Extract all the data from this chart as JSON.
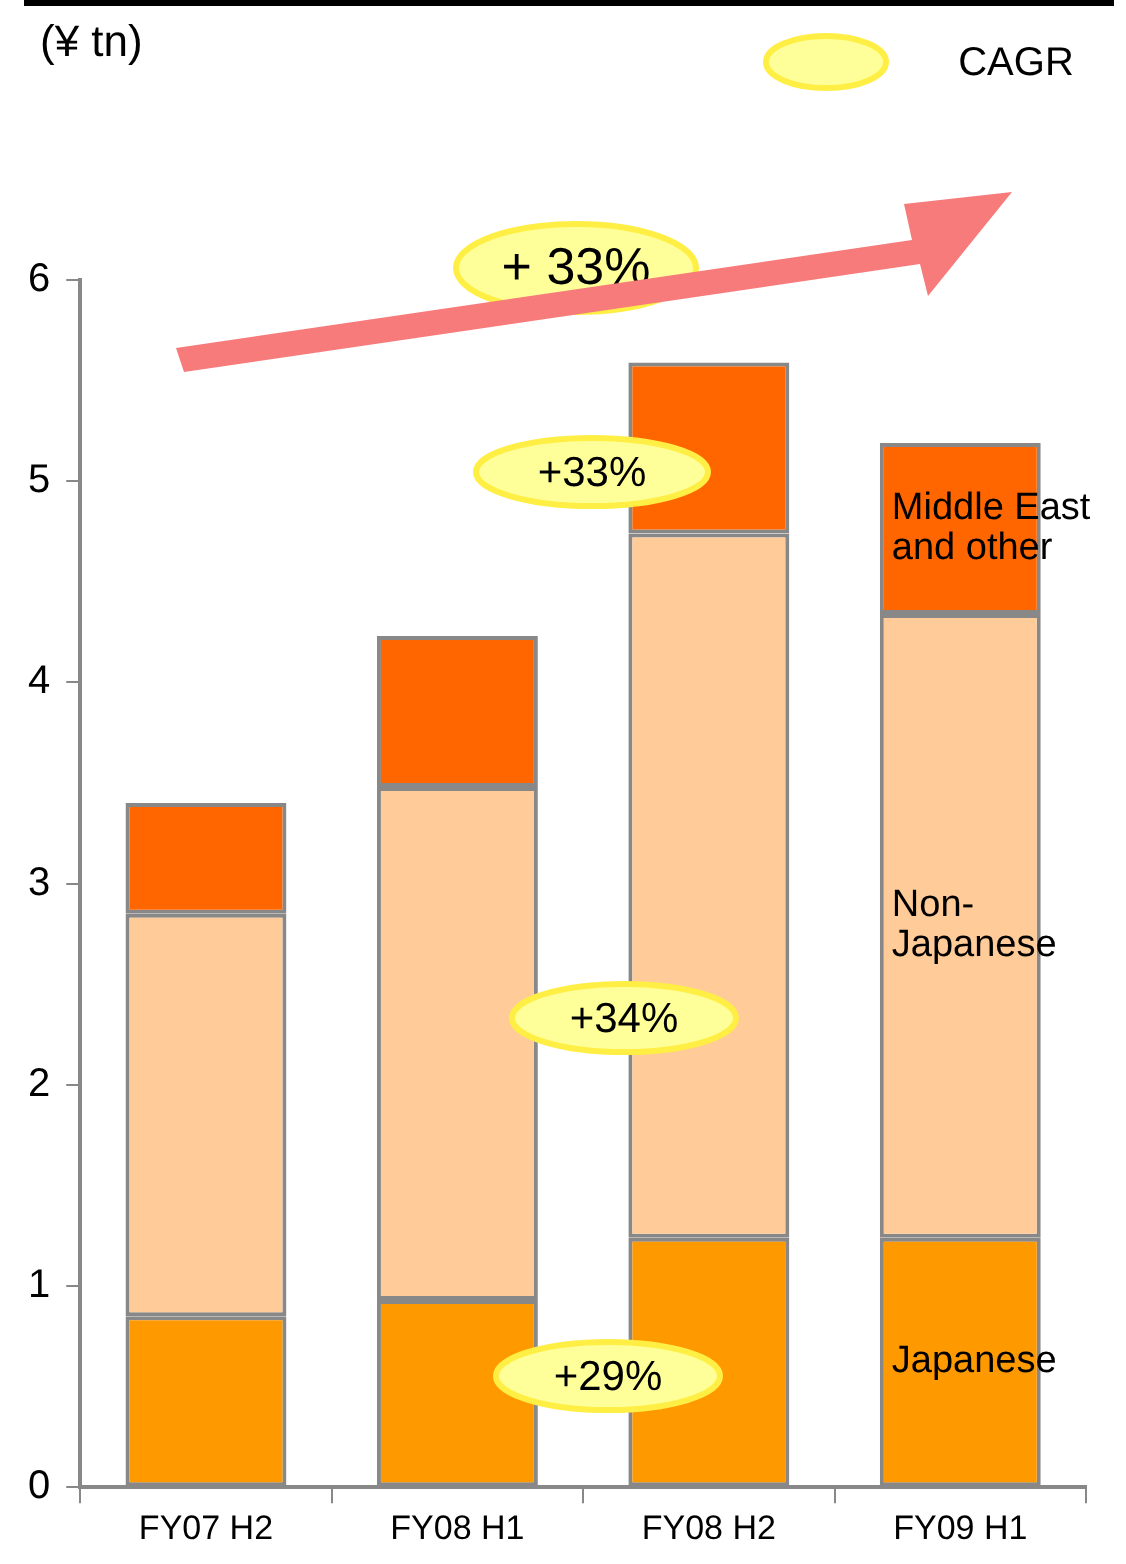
{
  "chart_data": {
    "type": "bar",
    "stacked": true,
    "ylabel": "(¥ tn)",
    "categories": [
      "FY07 H2",
      "FY08 H1",
      "FY08 H2",
      "FY09 H1"
    ],
    "series": [
      {
        "name": "Japanese",
        "color": "#ff9900",
        "values": [
          0.85,
          0.93,
          1.24,
          1.24
        ]
      },
      {
        "name": "Non-Japanese",
        "color": "#ffcc99",
        "values": [
          2.0,
          2.55,
          3.5,
          3.1
        ]
      },
      {
        "name": "Middle East and other",
        "color": "#ff6600",
        "values": [
          0.55,
          0.75,
          0.85,
          0.85
        ]
      }
    ],
    "ylim": [
      0,
      6
    ],
    "yticks": [
      0,
      1,
      2,
      3,
      4,
      5,
      6
    ],
    "grid": false,
    "legend": false,
    "annotations": [
      "CAGR",
      "+ 33%",
      "+33%",
      "+34%",
      "+29%"
    ]
  }
}
